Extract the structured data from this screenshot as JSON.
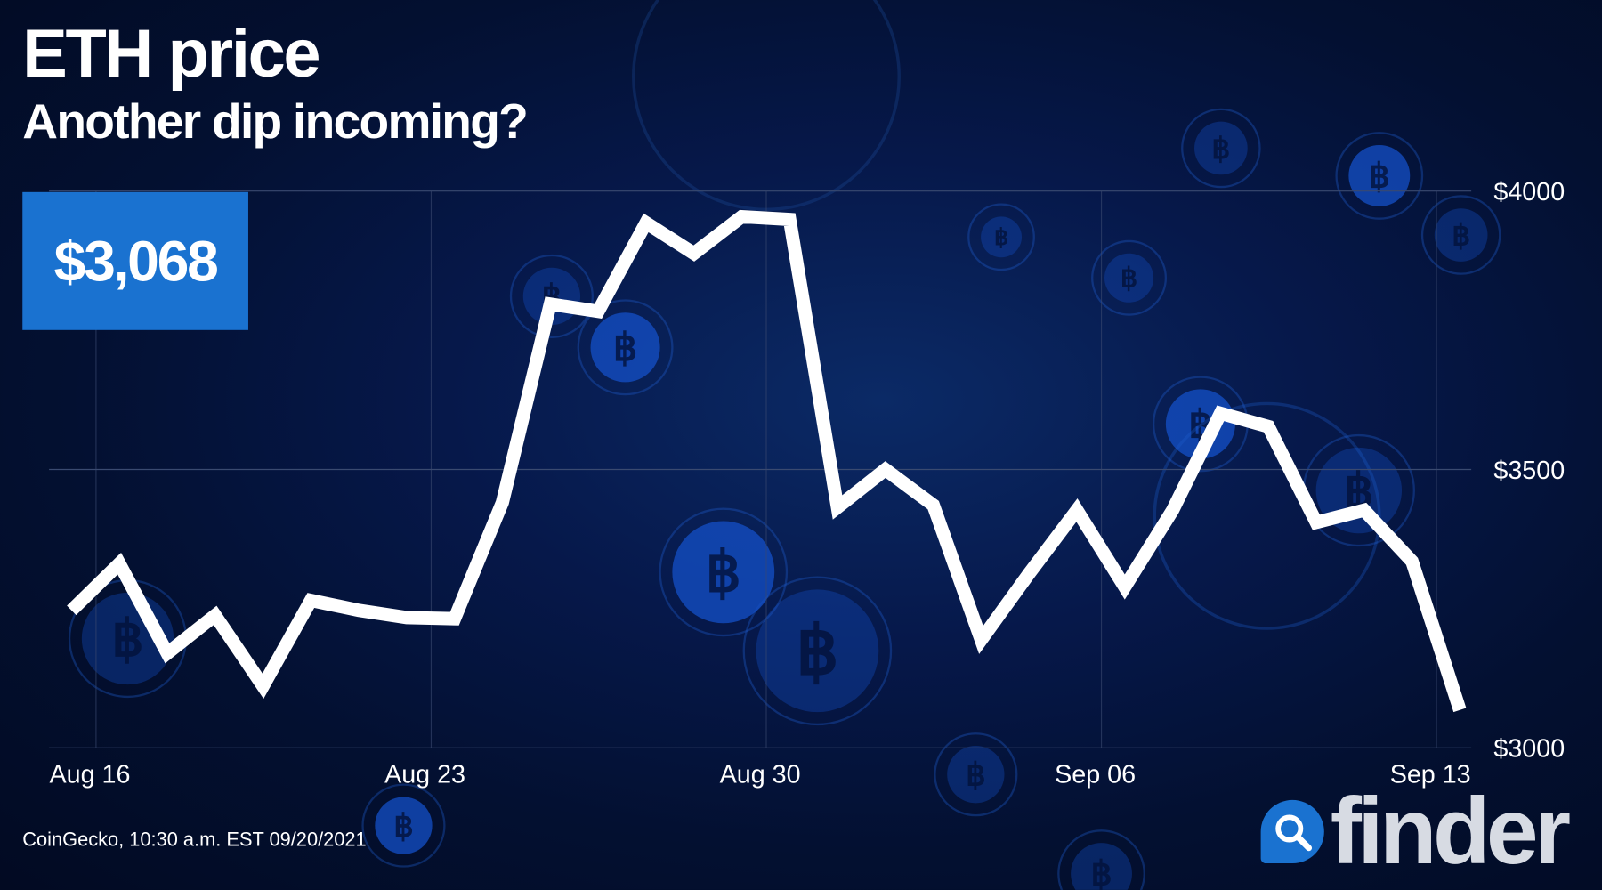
{
  "header": {
    "title": "ETH price",
    "subtitle": "Another dip incoming?"
  },
  "current_price": "$3,068",
  "source": "CoinGecko, 10:30 a.m. EST 09/20/2021",
  "logo": {
    "text": "finder",
    "icon": "magnifier-icon"
  },
  "colors": {
    "background": "#031031",
    "accent": "#1a72d0",
    "line": "#ffffff",
    "grid": "#3a4a70"
  },
  "chart_data": {
    "type": "line",
    "title": "ETH price",
    "xlabel": "",
    "ylabel": "",
    "ylim": [
      3000,
      4000
    ],
    "y_ticks": [
      "$4000",
      "$3500",
      "$3000"
    ],
    "y_tick_values": [
      4000,
      3500,
      3000
    ],
    "x_ticks": [
      "Aug 16",
      "Aug 23",
      "Aug 30",
      "Sep 06",
      "Sep 13"
    ],
    "x_tick_dates": [
      "2021-08-16",
      "2021-08-23",
      "2021-08-30",
      "2021-09-06",
      "2021-09-13"
    ],
    "grid": true,
    "x": [
      "2021-08-15",
      "2021-08-16",
      "2021-08-17",
      "2021-08-18",
      "2021-08-19",
      "2021-08-20",
      "2021-08-21",
      "2021-08-22",
      "2021-08-23",
      "2021-08-24",
      "2021-08-25",
      "2021-08-26",
      "2021-08-27",
      "2021-08-28",
      "2021-08-29",
      "2021-08-30",
      "2021-08-31",
      "2021-09-01",
      "2021-09-02",
      "2021-09-03",
      "2021-09-04",
      "2021-09-05",
      "2021-09-06",
      "2021-09-07",
      "2021-09-08",
      "2021-09-09",
      "2021-09-10",
      "2021-09-11",
      "2021-09-12",
      "2021-09-13"
    ],
    "values": [
      3247,
      3331,
      3170,
      3238,
      3111,
      3265,
      3247,
      3234,
      3232,
      3441,
      3797,
      3784,
      3943,
      3888,
      3954,
      3949,
      3432,
      3500,
      3436,
      3194,
      3313,
      3427,
      3289,
      3427,
      3601,
      3577,
      3405,
      3427,
      3335,
      3068
    ]
  }
}
